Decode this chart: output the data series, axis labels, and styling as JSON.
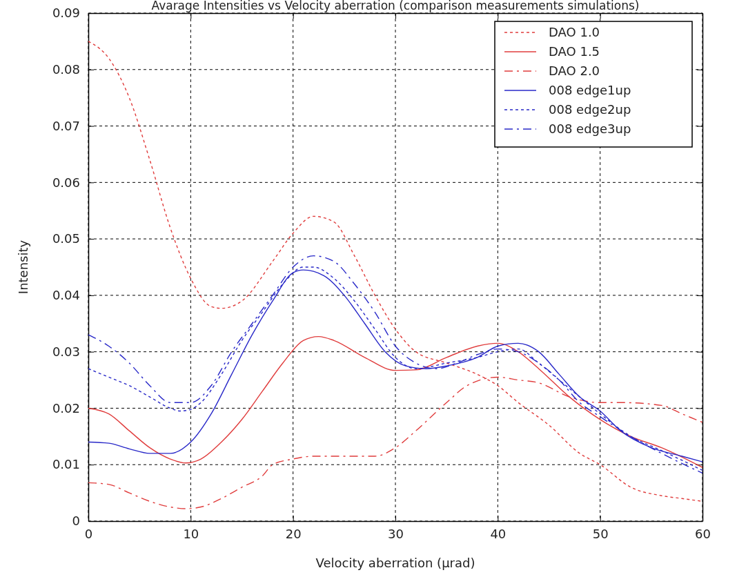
{
  "chart_data": {
    "type": "line",
    "title": "Avarage Intensities vs Velocity aberration (comparison measurements simulations)",
    "xlabel": "Velocity aberration (µrad)",
    "ylabel": "Intensity",
    "xlim": [
      0,
      60
    ],
    "xticks": [
      0,
      10,
      20,
      30,
      40,
      50,
      60
    ],
    "ylim": [
      0,
      0.09
    ],
    "yticks": [
      0,
      0.01,
      0.02,
      0.03,
      0.04,
      0.05,
      0.06,
      0.07,
      0.08,
      0.09
    ],
    "grid": true,
    "legend": "top right",
    "marker": "none",
    "series": [
      {
        "name": "DAO 1.0",
        "color": "#e03c3c",
        "line_style": "dotted",
        "x": [
          0,
          2,
          4,
          6,
          8,
          10,
          12,
          13,
          15,
          18,
          20,
          22,
          24,
          26,
          28,
          30,
          32,
          35,
          38,
          40,
          42,
          45,
          48,
          50,
          53,
          56,
          58,
          60
        ],
        "values": [
          0.085,
          0.082,
          0.075,
          0.064,
          0.052,
          0.043,
          0.038,
          0.0377,
          0.039,
          0.046,
          0.051,
          0.054,
          0.053,
          0.047,
          0.04,
          0.034,
          0.03,
          0.028,
          0.026,
          0.024,
          0.021,
          0.017,
          0.012,
          0.01,
          0.006,
          0.0045,
          0.004,
          0.0035
        ]
      },
      {
        "name": "DAO 1.5",
        "color": "#e03c3c",
        "line_style": "solid",
        "x": [
          0,
          2,
          4,
          6,
          8,
          9.5,
          11,
          13,
          15,
          17,
          19,
          21,
          22.5,
          24,
          27,
          30,
          32,
          35,
          38,
          40,
          42,
          44,
          47,
          50,
          53,
          56,
          60
        ],
        "values": [
          0.02,
          0.019,
          0.016,
          0.013,
          0.011,
          0.0103,
          0.011,
          0.014,
          0.018,
          0.023,
          0.028,
          0.032,
          0.0327,
          0.032,
          0.029,
          0.0267,
          0.0268,
          0.029,
          0.031,
          0.0315,
          0.03,
          0.027,
          0.022,
          0.018,
          0.015,
          0.013,
          0.0095
        ]
      },
      {
        "name": "DAO 2.0",
        "color": "#e03c3c",
        "line_style": "dashed",
        "x": [
          0,
          2,
          4,
          6,
          8,
          9.5,
          11,
          13,
          15,
          17,
          18,
          20,
          22,
          25,
          28,
          30,
          32,
          35,
          37,
          40,
          42,
          44,
          47,
          50,
          52,
          56,
          58,
          60
        ],
        "values": [
          0.0068,
          0.0065,
          0.005,
          0.0035,
          0.0025,
          0.0022,
          0.0025,
          0.004,
          0.006,
          0.008,
          0.01,
          0.011,
          0.0115,
          0.0115,
          0.0115,
          0.013,
          0.016,
          0.021,
          0.024,
          0.0255,
          0.025,
          0.0245,
          0.022,
          0.021,
          0.021,
          0.0205,
          0.019,
          0.0175
        ]
      },
      {
        "name": "008 edge1up",
        "color": "#2828c8",
        "line_style": "solid",
        "x": [
          0,
          2,
          4,
          6,
          8,
          10,
          12,
          14,
          16,
          18,
          20,
          21,
          23,
          25,
          27,
          29,
          31,
          33,
          35,
          38,
          40,
          42,
          44,
          46,
          48,
          50,
          52,
          55,
          58,
          60
        ],
        "values": [
          0.014,
          0.0138,
          0.0128,
          0.012,
          0.012,
          0.014,
          0.019,
          0.026,
          0.033,
          0.039,
          0.044,
          0.0445,
          0.0435,
          0.04,
          0.035,
          0.03,
          0.0275,
          0.027,
          0.0275,
          0.029,
          0.031,
          0.0315,
          0.03,
          0.026,
          0.022,
          0.0195,
          0.016,
          0.013,
          0.0115,
          0.0105
        ]
      },
      {
        "name": "008 edge2up",
        "color": "#2828c8",
        "line_style": "dotted",
        "x": [
          0,
          2,
          4,
          6,
          8,
          9,
          10,
          11,
          13,
          15,
          17,
          19,
          21,
          22,
          24,
          26,
          28,
          30,
          32,
          35,
          38,
          40,
          42,
          44,
          46,
          48,
          50,
          53,
          56,
          60
        ],
        "values": [
          0.027,
          0.0255,
          0.024,
          0.022,
          0.02,
          0.0195,
          0.0198,
          0.021,
          0.026,
          0.032,
          0.037,
          0.042,
          0.045,
          0.045,
          0.043,
          0.039,
          0.034,
          0.029,
          0.027,
          0.028,
          0.029,
          0.03,
          0.0305,
          0.028,
          0.025,
          0.022,
          0.019,
          0.015,
          0.0125,
          0.009
        ]
      },
      {
        "name": "008 edge3up",
        "color": "#2828c8",
        "line_style": "dashed",
        "x": [
          0,
          2,
          4,
          6,
          8,
          10,
          12,
          14,
          16,
          18,
          20,
          22,
          24,
          26,
          28,
          30,
          32,
          34,
          36,
          38,
          40,
          42,
          44,
          46,
          48,
          50,
          53,
          56,
          60
        ],
        "values": [
          0.033,
          0.031,
          0.028,
          0.024,
          0.021,
          0.021,
          0.024,
          0.03,
          0.035,
          0.04,
          0.045,
          0.047,
          0.046,
          0.042,
          0.037,
          0.031,
          0.028,
          0.027,
          0.028,
          0.0295,
          0.0305,
          0.03,
          0.028,
          0.025,
          0.021,
          0.0185,
          0.015,
          0.012,
          0.0085
        ]
      }
    ]
  }
}
